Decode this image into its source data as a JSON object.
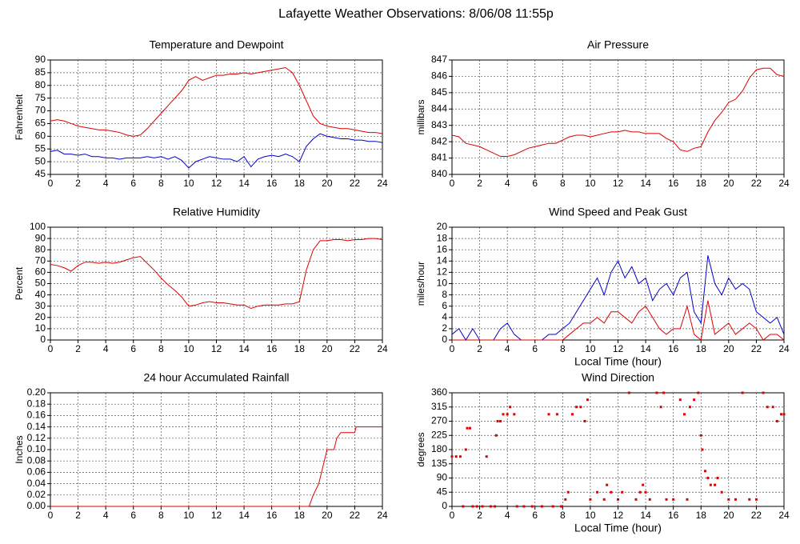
{
  "title": "Lafayette Weather Observations: 8/06/08 11:55p",
  "chart_data": [
    {
      "type": "line",
      "title": "Temperature and Dewpoint",
      "y_label": "Fahrenheit",
      "x": [
        0,
        0.5,
        1,
        1.5,
        2,
        2.5,
        3,
        3.5,
        4,
        4.5,
        5,
        5.5,
        6,
        6.5,
        7,
        7.5,
        8,
        8.5,
        9,
        9.5,
        10,
        10.5,
        11,
        11.5,
        12,
        12.5,
        13,
        13.5,
        14,
        14.5,
        15,
        15.5,
        16,
        16.5,
        17,
        17.5,
        18,
        18.5,
        19,
        19.5,
        20,
        20.5,
        21,
        21.5,
        22,
        22.5,
        23,
        23.5,
        24
      ],
      "series": [
        {
          "name": "Temperature",
          "color": "#dd0000",
          "values": [
            66,
            66.5,
            66,
            65,
            64,
            63.5,
            63,
            62.5,
            62.5,
            62,
            61.5,
            60.5,
            60,
            60.5,
            63,
            66,
            69,
            72,
            75,
            78,
            82,
            83.5,
            82,
            83,
            84,
            84,
            84.5,
            84.5,
            85,
            84.5,
            85,
            85.5,
            86,
            86.5,
            87,
            85,
            80,
            74,
            68,
            65,
            64,
            63.5,
            63,
            63,
            62.5,
            62,
            61.5,
            61.5,
            61
          ]
        },
        {
          "name": "Dewpoint",
          "color": "#0000cc",
          "values": [
            54,
            54.5,
            53,
            53,
            52.5,
            53,
            52,
            52,
            51.5,
            51.5,
            51,
            51.5,
            51.5,
            51.5,
            52,
            51.5,
            52,
            51,
            52,
            50.5,
            47.5,
            50,
            51,
            52,
            51.5,
            51,
            51,
            50,
            52,
            48,
            51,
            52,
            52.5,
            52,
            53,
            52,
            50,
            56,
            59,
            61,
            60,
            59.5,
            59,
            59,
            58.5,
            58.5,
            58,
            58,
            57.5
          ]
        }
      ],
      "xlim": [
        0,
        24
      ],
      "xticks": [
        0,
        2,
        4,
        6,
        8,
        10,
        12,
        14,
        16,
        18,
        20,
        22,
        24
      ],
      "ylim": [
        45,
        90
      ],
      "yticks": [
        45,
        50,
        55,
        60,
        65,
        70,
        75,
        80,
        85,
        90
      ],
      "grid": true
    },
    {
      "type": "line",
      "title": "Air Pressure",
      "y_label": "millibars",
      "x": [
        0,
        0.5,
        1,
        1.5,
        2,
        2.5,
        3,
        3.5,
        4,
        4.5,
        5,
        5.5,
        6,
        6.5,
        7,
        7.5,
        8,
        8.5,
        9,
        9.5,
        10,
        10.5,
        11,
        11.5,
        12,
        12.5,
        13,
        13.5,
        14,
        14.5,
        15,
        15.5,
        16,
        16.5,
        17,
        17.5,
        18,
        18.5,
        19,
        19.5,
        20,
        20.5,
        21,
        21.5,
        22,
        22.5,
        23,
        23.5,
        24
      ],
      "series": [
        {
          "name": "Pressure",
          "color": "#dd0000",
          "values": [
            842.4,
            842.3,
            841.9,
            841.8,
            841.7,
            841.5,
            841.3,
            841.1,
            841.1,
            841.2,
            841.4,
            841.6,
            841.7,
            841.8,
            841.9,
            841.9,
            842.1,
            842.3,
            842.4,
            842.4,
            842.3,
            842.4,
            842.5,
            842.6,
            842.6,
            842.7,
            842.6,
            842.6,
            842.5,
            842.5,
            842.5,
            842.2,
            842.0,
            841.5,
            841.4,
            841.6,
            841.7,
            842.6,
            843.3,
            843.8,
            844.4,
            844.6,
            845.1,
            845.9,
            846.4,
            846.5,
            846.5,
            846.1,
            846.0
          ]
        }
      ],
      "xlim": [
        0,
        24
      ],
      "xticks": [
        0,
        2,
        4,
        6,
        8,
        10,
        12,
        14,
        16,
        18,
        20,
        22,
        24
      ],
      "ylim": [
        840,
        847
      ],
      "yticks": [
        840,
        841,
        842,
        843,
        844,
        845,
        846,
        847
      ],
      "grid": true
    },
    {
      "type": "line",
      "title": "Relative Humidity",
      "y_label": "Percent",
      "x": [
        0,
        0.5,
        1,
        1.5,
        2,
        2.5,
        3,
        3.5,
        4,
        4.5,
        5,
        5.5,
        6,
        6.5,
        7,
        7.5,
        8,
        8.5,
        9,
        9.5,
        10,
        10.5,
        11,
        11.5,
        12,
        12.5,
        13,
        13.5,
        14,
        14.5,
        15,
        15.5,
        16,
        16.5,
        17,
        17.5,
        18,
        18.5,
        19,
        19.5,
        20,
        20.5,
        21,
        21.5,
        22,
        22.5,
        23,
        23.5,
        24
      ],
      "series": [
        {
          "name": "Humidity",
          "color": "#dd0000",
          "values": [
            67,
            66,
            64,
            61,
            66,
            69,
            69,
            68,
            69,
            68,
            69,
            71,
            73,
            74,
            68,
            62,
            55,
            49,
            44,
            38,
            30,
            31,
            33,
            34,
            33,
            33,
            32,
            31,
            31,
            28,
            30,
            31,
            31,
            31,
            32,
            32,
            34,
            62,
            80,
            88,
            88,
            89,
            89,
            88,
            89,
            89,
            90,
            90,
            89
          ]
        }
      ],
      "xlim": [
        0,
        24
      ],
      "xticks": [
        0,
        2,
        4,
        6,
        8,
        10,
        12,
        14,
        16,
        18,
        20,
        22,
        24
      ],
      "ylim": [
        0,
        100
      ],
      "yticks": [
        0,
        10,
        20,
        30,
        40,
        50,
        60,
        70,
        80,
        90,
        100
      ],
      "grid": true
    },
    {
      "type": "line",
      "title": "Wind Speed and Peak Gust",
      "y_label": "miles/hour",
      "x_label": "Local Time (hour)",
      "x": [
        0,
        0.5,
        1,
        1.5,
        2,
        2.5,
        3,
        3.5,
        4,
        4.5,
        5,
        5.5,
        6,
        6.5,
        7,
        7.5,
        8,
        8.5,
        9,
        9.5,
        10,
        10.5,
        11,
        11.5,
        12,
        12.5,
        13,
        13.5,
        14,
        14.5,
        15,
        15.5,
        16,
        16.5,
        17,
        17.5,
        18,
        18.5,
        19,
        19.5,
        20,
        20.5,
        21,
        21.5,
        22,
        22.5,
        23,
        23.5,
        24
      ],
      "series": [
        {
          "name": "Wind Speed",
          "color": "#0000cc",
          "values": [
            1,
            2,
            0,
            2,
            0,
            0,
            0,
            2,
            3,
            1,
            0,
            0,
            0,
            0,
            1,
            1,
            2,
            3,
            5,
            7,
            9,
            11,
            8,
            12,
            14,
            11,
            13,
            10,
            11,
            7,
            9,
            10,
            8,
            11,
            12,
            5,
            3,
            15,
            10,
            8,
            11,
            9,
            10,
            9,
            5,
            4,
            3,
            4,
            1
          ]
        },
        {
          "name": "Peak Gust",
          "color": "#dd0000",
          "values": [
            0,
            0,
            0,
            0,
            0,
            0,
            0,
            0,
            0,
            0,
            0,
            0,
            0,
            0,
            0,
            0,
            0,
            1,
            2,
            3,
            3,
            4,
            3,
            5,
            5,
            4,
            3,
            5,
            6,
            4,
            2,
            1,
            2,
            2,
            6,
            1,
            0,
            7,
            1,
            2,
            3,
            1,
            2,
            3,
            2,
            0,
            1,
            1,
            0
          ]
        }
      ],
      "xlim": [
        0,
        24
      ],
      "xticks": [
        0,
        2,
        4,
        6,
        8,
        10,
        12,
        14,
        16,
        18,
        20,
        22,
        24
      ],
      "ylim": [
        0,
        20
      ],
      "yticks": [
        0,
        2,
        4,
        6,
        8,
        10,
        12,
        14,
        16,
        18,
        20
      ],
      "grid": true
    },
    {
      "type": "line",
      "title": "24 hour Accumulated Rainfall",
      "y_label": "Inches",
      "x": [
        0,
        18.7,
        19,
        19.4,
        19.7,
        20,
        20.5,
        20.7,
        21,
        22,
        22.1,
        24
      ],
      "series": [
        {
          "name": "Rainfall",
          "color": "#dd0000",
          "values": [
            0,
            0,
            0.02,
            0.04,
            0.07,
            0.1,
            0.1,
            0.12,
            0.13,
            0.13,
            0.14,
            0.14
          ]
        }
      ],
      "xlim": [
        0,
        24
      ],
      "xticks": [
        0,
        2,
        4,
        6,
        8,
        10,
        12,
        14,
        16,
        18,
        20,
        22,
        24
      ],
      "ylim": [
        0,
        0.2
      ],
      "yticks": [
        {
          "value": 0,
          "label": "0.00"
        },
        0.02,
        0.04,
        0.06,
        0.08,
        {
          "value": 0.1,
          "label": "0.10"
        },
        0.12,
        0.14,
        0.16,
        0.18,
        {
          "value": 0.2,
          "label": "0.20"
        }
      ],
      "grid": true
    },
    {
      "type": "scatter",
      "title": "Wind Direction",
      "y_label": "degrees",
      "x_label": "Local Time (hour)",
      "x": [
        0,
        0.3,
        0.6,
        0.8,
        1.0,
        1.1,
        1.3,
        1.5,
        1.8,
        2.2,
        2.5,
        2.8,
        3.1,
        3.2,
        3.3,
        3.5,
        3.7,
        4.0,
        4.2,
        4.5,
        4.7,
        5.2,
        5.8,
        6.5,
        7.0,
        7.3,
        7.6,
        7.9,
        8.2,
        8.4,
        8.7,
        9.0,
        9.3,
        9.6,
        9.8,
        10.0,
        10.5,
        11.0,
        11.2,
        11.5,
        12.0,
        12.3,
        12.8,
        13.3,
        13.6,
        13.8,
        14.0,
        14.3,
        14.8,
        15.1,
        15.3,
        15.5,
        16.0,
        16.5,
        16.8,
        17.0,
        17.2,
        17.5,
        17.8,
        18.0,
        18.1,
        18.3,
        18.5,
        18.7,
        19.0,
        19.2,
        19.5,
        20.0,
        20.5,
        21.0,
        21.5,
        22.0,
        22.5,
        22.8,
        23.2,
        23.5,
        23.8,
        24
      ],
      "series": [
        {
          "name": "Direction",
          "color": "#dd0000",
          "values": [
            158,
            158,
            158,
            0,
            180,
            248,
            248,
            0,
            0,
            0,
            158,
            0,
            0,
            225,
            270,
            270,
            292,
            292,
            315,
            292,
            0,
            0,
            0,
            0,
            292,
            0,
            292,
            0,
            22,
            45,
            292,
            315,
            315,
            270,
            338,
            22,
            45,
            22,
            68,
            45,
            22,
            45,
            360,
            22,
            45,
            68,
            45,
            22,
            360,
            315,
            360,
            22,
            22,
            338,
            292,
            22,
            315,
            338,
            360,
            225,
            180,
            112,
            90,
            68,
            68,
            90,
            45,
            22,
            22,
            360,
            22,
            22,
            360,
            315,
            315,
            270,
            292,
            292
          ]
        }
      ],
      "xlim": [
        0,
        24
      ],
      "xticks": [
        0,
        2,
        4,
        6,
        8,
        10,
        12,
        14,
        16,
        18,
        20,
        22,
        24
      ],
      "ylim": [
        0,
        360
      ],
      "yticks": [
        0,
        45,
        90,
        135,
        180,
        225,
        270,
        315,
        360
      ],
      "grid": true
    }
  ]
}
